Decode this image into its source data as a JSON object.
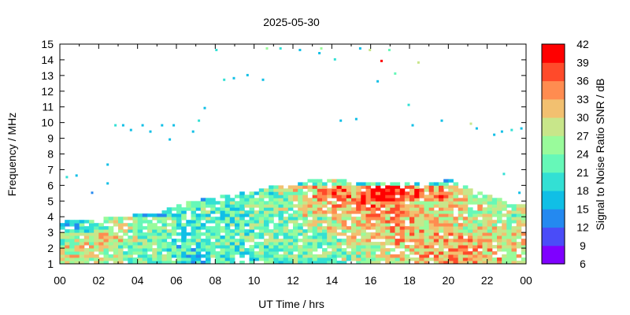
{
  "chart_data": {
    "type": "heatmap",
    "title": "2025-05-30",
    "xlabel": "UT Time / hrs",
    "ylabel": "Frequency / MHz",
    "xlim": [
      0,
      24
    ],
    "ylim": [
      1,
      15
    ],
    "x_ticks": [
      "00",
      "02",
      "04",
      "06",
      "08",
      "10",
      "12",
      "14",
      "16",
      "18",
      "20",
      "22",
      "00"
    ],
    "y_ticks": [
      "1",
      "2",
      "3",
      "4",
      "5",
      "6",
      "7",
      "8",
      "9",
      "10",
      "11",
      "12",
      "13",
      "14",
      "15"
    ],
    "colorbar": {
      "label": "Signal to Noise Ratio SNR / dB",
      "ticks": [
        "6",
        "9",
        "12",
        "15",
        "18",
        "21",
        "24",
        "27",
        "30",
        "33",
        "36",
        "39",
        "42"
      ],
      "levels": [
        6,
        9,
        12,
        15,
        18,
        21,
        24,
        27,
        30,
        33,
        36,
        39,
        42
      ],
      "colors": [
        "#7f00ff",
        "#4a4cf8",
        "#2489f0",
        "#10bfe6",
        "#33e0d4",
        "#66f8b8",
        "#99fb9b",
        "#c8e68a",
        "#f2c070",
        "#ff8c50",
        "#ff4a2a",
        "#ff0000"
      ]
    },
    "hours": [
      0,
      1,
      2,
      3,
      4,
      5,
      6,
      7,
      8,
      9,
      10,
      11,
      12,
      13,
      14,
      15,
      16,
      17,
      18,
      19,
      20,
      21,
      22,
      23
    ],
    "upper_edge_mhz": [
      3.6,
      3.7,
      3.8,
      3.9,
      4.1,
      4.2,
      4.7,
      5.0,
      5.2,
      5.4,
      5.6,
      5.9,
      6.0,
      6.3,
      6.3,
      6.2,
      6.2,
      6.2,
      6.0,
      6.1,
      6.3,
      5.7,
      5.3,
      4.8
    ],
    "snr_grid_db": {
      "freq_bins_mhz": [
        1,
        2,
        3,
        4,
        5,
        6
      ],
      "values": [
        [
          27,
          30,
          27,
          25,
          24,
          24,
          20,
          20,
          22,
          22,
          22,
          22,
          24,
          24,
          24,
          26,
          27,
          28,
          30,
          32,
          33,
          33,
          32,
          30
        ],
        [
          24,
          27,
          30,
          30,
          26,
          24,
          22,
          22,
          22,
          22,
          24,
          24,
          24,
          24,
          26,
          28,
          30,
          30,
          33,
          32,
          33,
          32,
          30,
          30
        ],
        [
          18,
          20,
          24,
          27,
          24,
          22,
          22,
          22,
          22,
          22,
          24,
          24,
          24,
          26,
          28,
          30,
          30,
          32,
          32,
          30,
          30,
          28,
          28,
          27
        ],
        [
          15,
          15,
          16,
          16,
          18,
          18,
          22,
          22,
          22,
          22,
          24,
          24,
          26,
          30,
          33,
          34,
          35,
          33,
          32,
          30,
          30,
          28,
          28,
          26
        ],
        [
          15,
          15,
          15,
          15,
          15,
          16,
          16,
          18,
          18,
          20,
          22,
          24,
          28,
          32,
          36,
          33,
          39,
          39,
          36,
          34,
          33,
          27,
          24,
          20
        ],
        [
          15,
          15,
          15,
          15,
          15,
          15,
          15,
          15,
          15,
          16,
          18,
          20,
          22,
          24,
          26,
          22,
          20,
          18,
          18,
          16,
          18,
          16,
          15,
          15
        ]
      ]
    },
    "sparse_points": [
      [
        0.3,
        6.6,
        18
      ],
      [
        0.8,
        6.7,
        15
      ],
      [
        1.6,
        5.6,
        12
      ],
      [
        2.4,
        7.4,
        15
      ],
      [
        2.4,
        6.2,
        15
      ],
      [
        2.8,
        9.9,
        18
      ],
      [
        3.2,
        9.9,
        15
      ],
      [
        3.6,
        9.6,
        15
      ],
      [
        4.2,
        9.9,
        15
      ],
      [
        4.6,
        9.5,
        15
      ],
      [
        5.2,
        9.9,
        15
      ],
      [
        5.8,
        9.9,
        15
      ],
      [
        5.6,
        9.0,
        15
      ],
      [
        6.8,
        9.5,
        15
      ],
      [
        7.1,
        10.2,
        18
      ],
      [
        7.4,
        11.0,
        15
      ],
      [
        8.0,
        14.7,
        18
      ],
      [
        8.4,
        12.8,
        18
      ],
      [
        8.9,
        12.9,
        15
      ],
      [
        9.6,
        13.1,
        15
      ],
      [
        10.4,
        12.8,
        15
      ],
      [
        10.6,
        14.8,
        24
      ],
      [
        11.3,
        14.8,
        18
      ],
      [
        12.3,
        14.7,
        15
      ],
      [
        13.3,
        14.5,
        15
      ],
      [
        13.4,
        14.8,
        24
      ],
      [
        14.1,
        14.1,
        18
      ],
      [
        14.4,
        10.2,
        15
      ],
      [
        15.2,
        10.3,
        15
      ],
      [
        15.4,
        14.8,
        15
      ],
      [
        15.9,
        14.7,
        27
      ],
      [
        16.3,
        12.7,
        15
      ],
      [
        16.5,
        14.0,
        39
      ],
      [
        16.9,
        14.7,
        21
      ],
      [
        17.2,
        13.2,
        21
      ],
      [
        17.9,
        11.2,
        18
      ],
      [
        18.1,
        9.9,
        15
      ],
      [
        18.4,
        13.9,
        27
      ],
      [
        19.6,
        10.2,
        15
      ],
      [
        21.1,
        10.0,
        27
      ],
      [
        21.4,
        9.7,
        15
      ],
      [
        22.3,
        9.3,
        15
      ],
      [
        22.7,
        9.5,
        15
      ],
      [
        23.2,
        9.6,
        18
      ],
      [
        23.7,
        9.7,
        15
      ],
      [
        22.8,
        6.8,
        18
      ],
      [
        23.6,
        5.6,
        15
      ]
    ]
  }
}
